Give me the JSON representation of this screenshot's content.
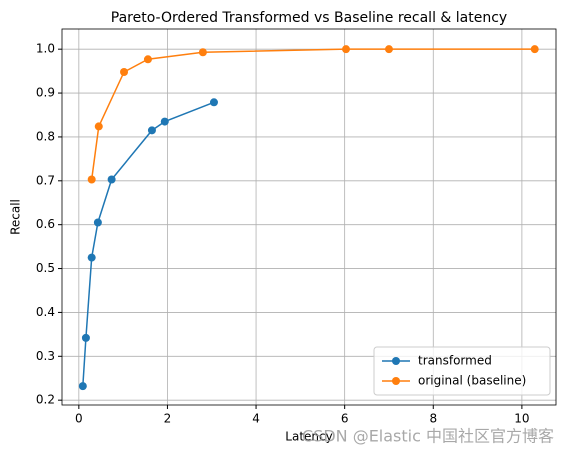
{
  "chart_data": {
    "type": "line",
    "title": "Pareto-Ordered Transformed vs Baseline recall & latency",
    "x_label": "Latency",
    "y_label": "Recall",
    "series": [
      {
        "name": "transformed",
        "color": "#1f77b4",
        "x": [
          0.09,
          0.16,
          0.29,
          0.43,
          0.74,
          1.65,
          1.94,
          3.05
        ],
        "values": [
          0.232,
          0.342,
          0.525,
          0.605,
          0.703,
          0.815,
          0.835,
          0.879
        ]
      },
      {
        "name": "original (baseline)",
        "color": "#ff7f0e",
        "x": [
          0.29,
          0.45,
          1.02,
          1.56,
          2.8,
          6.03,
          7.0,
          10.29
        ],
        "values": [
          0.703,
          0.824,
          0.948,
          0.977,
          0.993,
          1.0,
          1.0,
          1.0
        ]
      }
    ],
    "xlim": [
      -0.38,
      10.77
    ],
    "ylim": [
      0.189,
      1.046
    ],
    "xticks": [
      0,
      2,
      4,
      6,
      8,
      10
    ],
    "yticks": [
      0.2,
      0.3,
      0.4,
      0.5,
      0.6,
      0.7,
      0.8,
      0.9,
      {
        "value": 1,
        "label": "1.0"
      }
    ],
    "grid": true,
    "legend": "lower right"
  },
  "watermark": "CSDN @Elastic 中国社区官方博客"
}
